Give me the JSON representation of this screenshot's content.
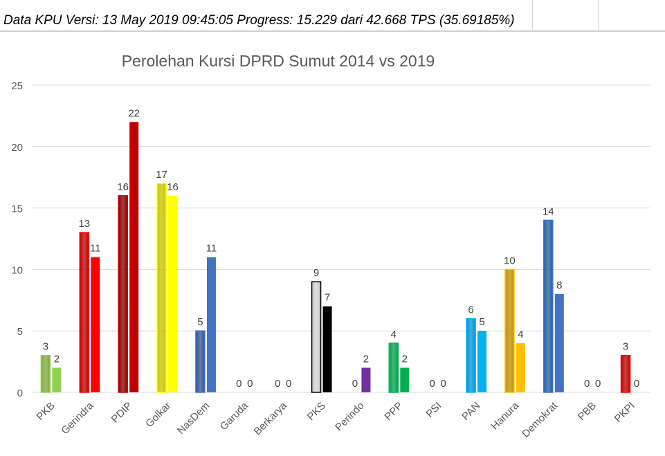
{
  "header": {
    "status_text": "Data KPU Versi: 13 May 2019 09:45:05 Progress: 15.229 dari 42.668 TPS (35.69185%)"
  },
  "chart_data": {
    "type": "bar",
    "title": "Perolehan Kursi DPRD Sumut 2014 vs 2019",
    "xlabel": "",
    "ylabel": "",
    "ylim": [
      0,
      25
    ],
    "yticks": [
      0,
      5,
      10,
      15,
      20,
      25
    ],
    "grid": true,
    "categories": [
      "PKB",
      "Gerindra",
      "PDIP",
      "Golkar",
      "NasDem",
      "Garuda",
      "Berkarya",
      "PKS",
      "Perindo",
      "PPP",
      "PSI",
      "PAN",
      "Hanura",
      "Demokrat",
      "PBB",
      "PKPI"
    ],
    "series": [
      {
        "values": [
          3,
          13,
          16,
          17,
          5,
          0,
          0,
          9,
          0,
          4,
          0,
          6,
          10,
          14,
          0,
          3
        ]
      },
      {
        "values": [
          2,
          11,
          22,
          16,
          11,
          0,
          0,
          7,
          2,
          2,
          0,
          5,
          4,
          8,
          0,
          0
        ]
      }
    ],
    "colors_2014": [
      "#7fa83a",
      "#c00000",
      "#8b0000",
      "#c9c400",
      "#2f5597",
      "#808080",
      "#808080",
      "#bfbfbf",
      "#7030a0",
      "#00a04f",
      "#808080",
      "#0094d6",
      "#bf8f00",
      "#1f5fa0",
      "#808080",
      "#c00000"
    ],
    "colors_2019": [
      "#92d050",
      "#ff0000",
      "#c00000",
      "#ffff00",
      "#4472c4",
      "#808080",
      "#808080",
      "#000000",
      "#7030a0",
      "#00b050",
      "#808080",
      "#00b0f0",
      "#ffc000",
      "#4472c4",
      "#808080",
      "#ff0000"
    ]
  }
}
